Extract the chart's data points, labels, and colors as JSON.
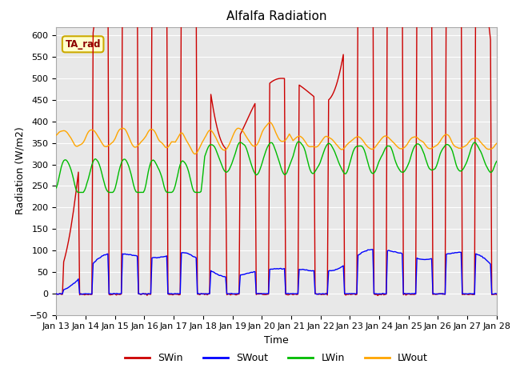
{
  "title": "Alfalfa Radiation",
  "xlabel": "Time",
  "ylabel": "Radiation (W/m2)",
  "ylim": [
    -50,
    620
  ],
  "yticks": [
    -50,
    0,
    50,
    100,
    150,
    200,
    250,
    300,
    350,
    400,
    450,
    500,
    550,
    600
  ],
  "xticklabels": [
    "Jan 13",
    "Jan 14",
    "Jan 15",
    "Jan 16",
    "Jan 17",
    "Jan 18",
    "Jan 19",
    "Jan 20",
    "Jan 21",
    "Jan 22",
    "Jan 23",
    "Jan 24",
    "Jan 25",
    "Jan 26",
    "Jan 27",
    "Jan 28"
  ],
  "annotation_text": "TA_rad",
  "legend_entries": [
    "SWin",
    "SWout",
    "LWin",
    "LWout"
  ],
  "line_colors": [
    "#CC0000",
    "#0000FF",
    "#00BB00",
    "#FFA500"
  ],
  "background_color": "#E8E8E8",
  "grid_color": "#FFFFFF",
  "figsize": [
    6.4,
    4.8
  ],
  "dpi": 100
}
